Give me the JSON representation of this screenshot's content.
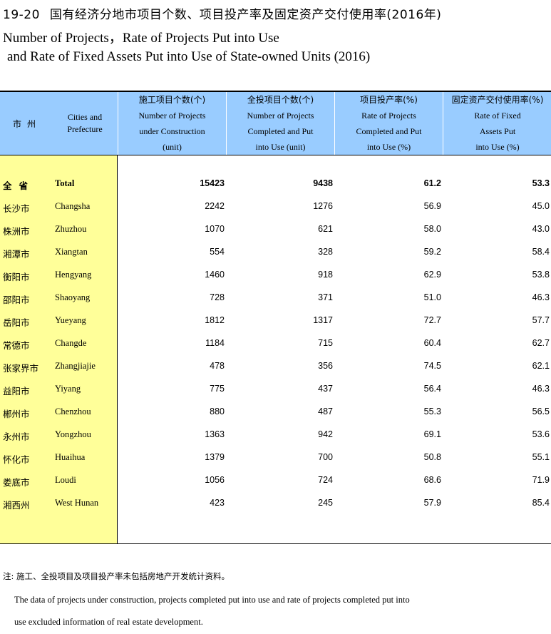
{
  "title": {
    "number": "19-20",
    "cn": "国有经济分地市项目个数、项目投产率及固定资产交付使用率(2016年)",
    "en_line1": "Number of Projects，Rate of Projects Put into Use",
    "en_line2": "and Rate of Fixed Assets Put into Use of State-owned Units (2016)"
  },
  "header": {
    "city_cn": "市州",
    "city_en": "Cities and Prefecture",
    "cols": [
      {
        "cn": "施工项目个数(个)",
        "en1": "Number of Projects",
        "en2": "under Construction",
        "en3": "(unit)"
      },
      {
        "cn": "全投项目个数(个)",
        "en1": "Number of Projects",
        "en2": "Completed and Put",
        "en3": "into Use (unit)"
      },
      {
        "cn": "项目投产率(%)",
        "en1": "Rate of Projects",
        "en2": "Completed and Put",
        "en3": "into Use (%)"
      },
      {
        "cn": "固定资产交付使用率(%)",
        "en1": "Rate of Fixed",
        "en2": "Assets Put",
        "en3": "into Use  (%)"
      }
    ]
  },
  "rows": [
    {
      "cn": "全省",
      "en": "Total",
      "v": [
        "15423",
        "9438",
        "61.2",
        "53.3"
      ]
    },
    {
      "cn": "长沙市",
      "en": "Changsha",
      "v": [
        "2242",
        "1276",
        "56.9",
        "45.0"
      ]
    },
    {
      "cn": "株洲市",
      "en": "Zhuzhou",
      "v": [
        "1070",
        "621",
        "58.0",
        "43.0"
      ]
    },
    {
      "cn": "湘潭市",
      "en": "Xiangtan",
      "v": [
        "554",
        "328",
        "59.2",
        "58.4"
      ]
    },
    {
      "cn": "衡阳市",
      "en": "Hengyang",
      "v": [
        "1460",
        "918",
        "62.9",
        "53.8"
      ]
    },
    {
      "cn": "邵阳市",
      "en": "Shaoyang",
      "v": [
        "728",
        "371",
        "51.0",
        "46.3"
      ]
    },
    {
      "cn": "岳阳市",
      "en": "Yueyang",
      "v": [
        "1812",
        "1317",
        "72.7",
        "57.7"
      ]
    },
    {
      "cn": "常德市",
      "en": "Changde",
      "v": [
        "1184",
        "715",
        "60.4",
        "62.7"
      ]
    },
    {
      "cn": "张家界市",
      "en": "Zhangjiajie",
      "v": [
        "478",
        "356",
        "74.5",
        "62.1"
      ]
    },
    {
      "cn": "益阳市",
      "en": "Yiyang",
      "v": [
        "775",
        "437",
        "56.4",
        "46.3"
      ]
    },
    {
      "cn": "郴州市",
      "en": "Chenzhou",
      "v": [
        "880",
        "487",
        "55.3",
        "56.5"
      ]
    },
    {
      "cn": "永州市",
      "en": "Yongzhou",
      "v": [
        "1363",
        "942",
        "69.1",
        "53.6"
      ]
    },
    {
      "cn": "怀化市",
      "en": "Huaihua",
      "v": [
        "1379",
        "700",
        "50.8",
        "55.1"
      ]
    },
    {
      "cn": "娄底市",
      "en": "Loudi",
      "v": [
        "1056",
        "724",
        "68.6",
        "71.9"
      ]
    },
    {
      "cn": "湘西州",
      "en": "West Hunan",
      "v": [
        "423",
        "245",
        "57.9",
        "85.4"
      ]
    }
  ],
  "notes": {
    "cn": "注: 施工、全投项目及项目投产率未包括房地产开发统计资料。",
    "en_line1": "The data of projects under construction, projects completed put into use and rate of projects completed put into",
    "en_line2": "use excluded information of real estate development."
  },
  "colors": {
    "header_bg": "#99ccff",
    "city_col_bg": "#ffff99"
  }
}
